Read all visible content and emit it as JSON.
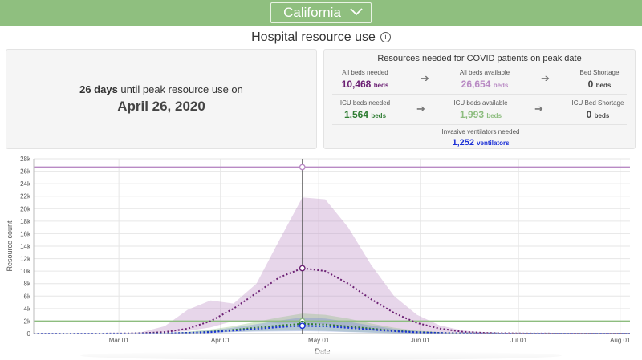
{
  "header": {
    "state": "California",
    "title": "Hospital resource use",
    "info_glyph": "i"
  },
  "summary": {
    "days_value": "26 days",
    "days_text": " until peak resource use on",
    "peak_date": "April 26, 2020"
  },
  "resources": {
    "title": "Resources needed for COVID patients on peak date",
    "all_beds_needed_label": "All beds needed",
    "all_beds_needed": "10,468",
    "all_beds_available_label": "All beds available",
    "all_beds_available": "26,654",
    "bed_shortage_label": "Bed Shortage",
    "bed_shortage": "0",
    "icu_beds_needed_label": "ICU beds needed",
    "icu_beds_needed": "1,564",
    "icu_beds_available_label": "ICU beds available",
    "icu_beds_available": "1,993",
    "icu_shortage_label": "ICU Bed Shortage",
    "icu_shortage": "0",
    "ventilators_label": "Invasive ventilators needed",
    "ventilators": "1,252",
    "beds_unit": "beds",
    "vent_unit": "ventilators",
    "colors": {
      "all_beds_needed": "#6b1f73",
      "all_beds_available": "#b98ac4",
      "icu_needed": "#2e7d32",
      "icu_available": "#8dbd7f",
      "ventilators": "#1a2fd6"
    }
  },
  "chart_data": {
    "type": "line",
    "xlabel": "Date",
    "ylabel": "Resource count",
    "ylim": [
      0,
      28000
    ],
    "yticks": [
      0,
      2000,
      4000,
      6000,
      8000,
      10000,
      12000,
      14000,
      16000,
      18000,
      20000,
      22000,
      24000,
      26000,
      28000
    ],
    "ytick_labels": [
      "0",
      "2k",
      "4k",
      "6k",
      "8k",
      "10k",
      "12k",
      "14k",
      "16k",
      "18k",
      "20k",
      "22k",
      "24k",
      "26k",
      "28k"
    ],
    "xlim": [
      "2020-02-04",
      "2020-08-04"
    ],
    "xticks": [
      "2020-03-01",
      "2020-04-01",
      "2020-05-01",
      "2020-06-01",
      "2020-07-01",
      "2020-08-01"
    ],
    "xtick_labels": [
      "Mar 01",
      "Apr 01",
      "May 01",
      "Jun 01",
      "Jul 01",
      "Aug 01"
    ],
    "grid": true,
    "highlight_date": "2020-04-26",
    "reference_lines": [
      {
        "value": 26654,
        "color": "#b98ac4"
      },
      {
        "value": 1993,
        "color": "#8dbd7f"
      }
    ],
    "x": [
      "2020-02-04",
      "2020-02-20",
      "2020-03-01",
      "2020-03-08",
      "2020-03-15",
      "2020-03-22",
      "2020-03-29",
      "2020-04-05",
      "2020-04-12",
      "2020-04-19",
      "2020-04-26",
      "2020-05-03",
      "2020-05-10",
      "2020-05-17",
      "2020-05-24",
      "2020-05-31",
      "2020-06-07",
      "2020-06-14",
      "2020-06-21",
      "2020-07-01",
      "2020-07-15",
      "2020-08-04"
    ],
    "series": [
      {
        "values": [
          0,
          0,
          10,
          60,
          250,
          800,
          2000,
          4000,
          6500,
          9000,
          10468,
          10000,
          8000,
          5500,
          3300,
          1700,
          800,
          300,
          100,
          20,
          0,
          0
        ],
        "lower": [
          0,
          0,
          5,
          30,
          150,
          400,
          1000,
          2000,
          2000,
          1600,
          1700,
          1500,
          1000,
          500,
          200,
          80,
          20,
          5,
          0,
          0,
          0,
          0
        ],
        "upper": [
          0,
          0,
          30,
          250,
          1200,
          3800,
          5300,
          4800,
          8000,
          15000,
          21800,
          21500,
          17000,
          11000,
          6000,
          3000,
          1300,
          500,
          150,
          30,
          0,
          0
        ],
        "color": "#6b1f73",
        "band_color": "#b98ac4"
      },
      {
        "values": [
          0,
          0,
          2,
          10,
          40,
          120,
          300,
          600,
          950,
          1300,
          1564,
          1450,
          1150,
          800,
          480,
          250,
          110,
          40,
          10,
          0,
          0,
          0
        ],
        "lower": [
          0,
          0,
          1,
          5,
          20,
          60,
          150,
          300,
          400,
          450,
          480,
          420,
          300,
          180,
          90,
          40,
          10,
          0,
          0,
          0,
          0,
          0
        ],
        "upper": [
          0,
          0,
          5,
          25,
          100,
          300,
          650,
          1200,
          1900,
          2600,
          3200,
          3000,
          2400,
          1600,
          950,
          480,
          200,
          70,
          15,
          0,
          0,
          0
        ],
        "color": "#2e7d32",
        "band_color": "#8dbd7f"
      },
      {
        "values": [
          0,
          0,
          1,
          8,
          30,
          100,
          240,
          480,
          760,
          1040,
          1252,
          1160,
          920,
          640,
          380,
          200,
          90,
          30,
          8,
          0,
          0,
          0
        ],
        "lower": [
          0,
          0,
          1,
          4,
          15,
          50,
          120,
          240,
          320,
          360,
          380,
          340,
          240,
          140,
          70,
          30,
          8,
          0,
          0,
          0,
          0,
          0
        ],
        "upper": [
          0,
          0,
          4,
          20,
          80,
          240,
          520,
          960,
          1520,
          2080,
          2600,
          2400,
          1900,
          1300,
          760,
          380,
          160,
          55,
          12,
          0,
          0,
          0
        ],
        "color": "#1a2fd6",
        "band_color": "#6f86d8"
      }
    ],
    "markers": [
      {
        "x": "2020-04-26",
        "y": 26654,
        "color": "#b98ac4"
      },
      {
        "x": "2020-04-26",
        "y": 10468,
        "color": "#6b1f73"
      },
      {
        "x": "2020-04-26",
        "y": 1993,
        "color": "#8dbd7f"
      },
      {
        "x": "2020-04-26",
        "y": 1564,
        "color": "#2e7d32"
      },
      {
        "x": "2020-04-26",
        "y": 1252,
        "color": "#1a2fd6"
      }
    ]
  }
}
